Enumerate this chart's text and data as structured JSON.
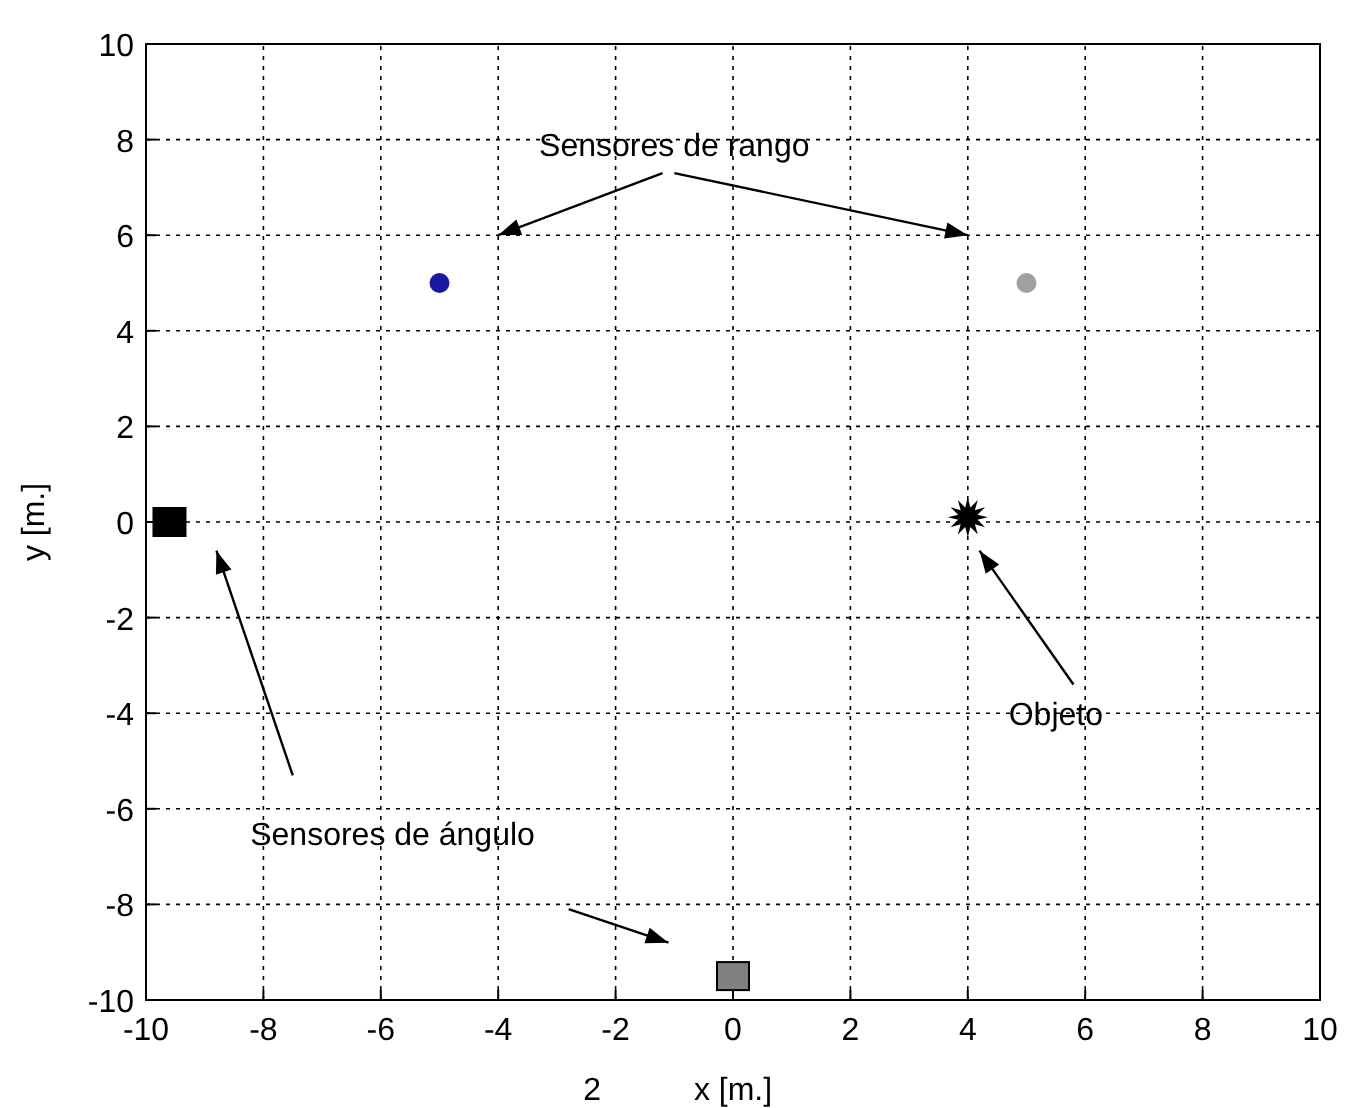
{
  "chart_data": {
    "type": "scatter",
    "xlabel": "x [m.]",
    "ylabel": "y [m.]",
    "xlim": [
      -10,
      10
    ],
    "ylim": [
      -10,
      10
    ],
    "xticks": [
      -10,
      -8,
      -6,
      -4,
      -2,
      0,
      2,
      4,
      6,
      8,
      10
    ],
    "yticks": [
      -10,
      -8,
      -6,
      -4,
      -2,
      0,
      2,
      4,
      6,
      8,
      10
    ],
    "grid": true,
    "line_style": "dotted",
    "series": [
      {
        "color": "#1a1aa0",
        "marker": "circle",
        "x": [
          -5
        ],
        "values": [
          5
        ]
      },
      {
        "color": "#a0a0a0",
        "marker": "circle",
        "x": [
          5
        ],
        "values": [
          5
        ]
      },
      {
        "color": "#000000",
        "marker": "square",
        "x": [
          -9.6
        ],
        "values": [
          0
        ]
      },
      {
        "color": "#808080",
        "marker": "square",
        "x": [
          0
        ],
        "values": [
          -9.5
        ]
      },
      {
        "color": "#000000",
        "marker": "star",
        "x": [
          4
        ],
        "values": [
          0.1
        ]
      }
    ],
    "annotations": [
      "Sensores de rango",
      "Sensores de ángulo",
      "Objeto",
      "2"
    ]
  }
}
